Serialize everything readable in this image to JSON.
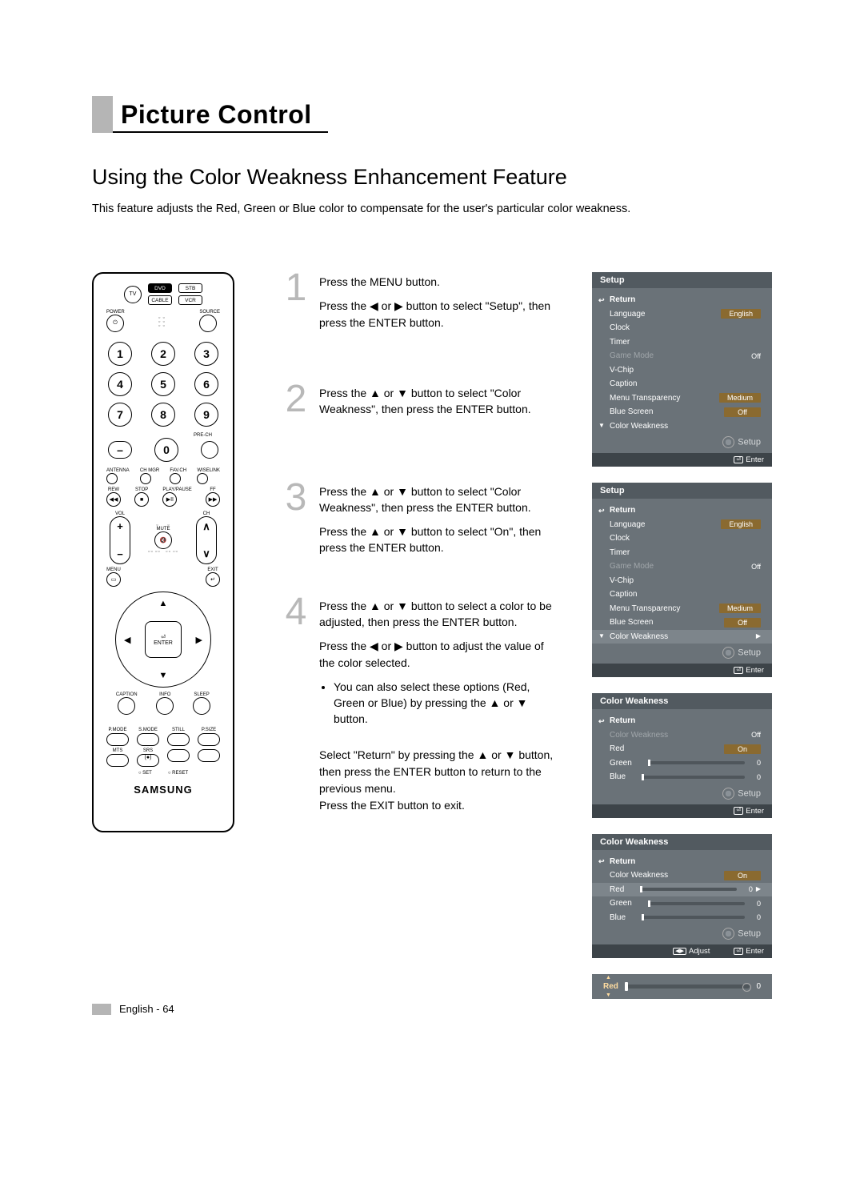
{
  "chapter_title": "Picture Control",
  "section_title": "Using the Color Weakness Enhancement Feature",
  "intro": "This feature adjusts the Red, Green or Blue color to compensate for the user's particular color weakness.",
  "remote": {
    "tv": "TV",
    "sources": [
      "DVD",
      "STB",
      "CABLE",
      "VCR"
    ],
    "power_label": "POWER",
    "source_label": "SOURCE",
    "numbers": [
      "1",
      "2",
      "3",
      "4",
      "5",
      "6",
      "7",
      "8",
      "9",
      "0"
    ],
    "dash": "–",
    "prech": "PRE-CH",
    "row_labels1": [
      "ANTENNA",
      "CH MGR",
      "FAV.CH",
      "WISELINK"
    ],
    "row_labels2": [
      "REW",
      "STOP",
      "PLAY/PAUSE",
      "FF"
    ],
    "vol": "VOL",
    "ch": "CH",
    "mute": "MUTE",
    "menu": "MENU",
    "exit": "EXIT",
    "enter": "ENTER",
    "row_labels3": [
      "CAPTION",
      "INFO",
      "SLEEP"
    ],
    "row_labels4": [
      "P.MODE",
      "S.MODE",
      "STILL",
      "P.SIZE"
    ],
    "row_labels5": [
      "MTS",
      "SRS"
    ],
    "set": "SET",
    "reset": "RESET",
    "logo": "SAMSUNG"
  },
  "steps": [
    {
      "num": "1",
      "lines": [
        "Press the MENU button.",
        "Press the ◀ or ▶ button to select \"Setup\", then press the ENTER button."
      ]
    },
    {
      "num": "2",
      "lines": [
        "Press the ▲ or ▼ button to select \"Color Weakness\", then press the ENTER button."
      ]
    },
    {
      "num": "3",
      "lines": [
        "Press the ▲ or ▼ button to select \"Color Weakness\", then press the ENTER button.",
        "Press the ▲ or ▼ button to select \"On\", then press the ENTER button."
      ]
    },
    {
      "num": "4",
      "lines": [
        "Press the ▲ or ▼ button to select a color to be adjusted, then press the ENTER button.",
        "Press the ◀ or ▶ button to adjust the value of the color selected."
      ],
      "bullet": "You can also select these options (Red, Green or Blue) by pressing the ▲ or ▼ button."
    }
  ],
  "closing": [
    "Select \"Return\" by pressing the ▲ or ▼ button, then press the ENTER button to return to the previous menu.",
    "Press the EXIT button to exit."
  ],
  "osd": {
    "setup_title": "Setup",
    "return": "Return",
    "menu1": [
      {
        "label": "Language",
        "value": "English",
        "hl": true
      },
      {
        "label": "Clock"
      },
      {
        "label": "Timer"
      },
      {
        "label": "Game Mode",
        "value": "Off",
        "dim": true
      },
      {
        "label": "V-Chip"
      },
      {
        "label": "Caption"
      },
      {
        "label": "Menu Transparency",
        "value": "Medium",
        "hl": true
      },
      {
        "label": "Blue Screen",
        "value": "Off",
        "hl": true
      },
      {
        "label": "Color Weakness",
        "tri": "▼"
      }
    ],
    "menu2": [
      {
        "label": "Language",
        "value": "English",
        "hl": true
      },
      {
        "label": "Clock"
      },
      {
        "label": "Timer"
      },
      {
        "label": "Game Mode",
        "value": "Off",
        "dim": true
      },
      {
        "label": "V-Chip"
      },
      {
        "label": "Caption"
      },
      {
        "label": "Menu Transparency",
        "value": "Medium",
        "hl": true
      },
      {
        "label": "Blue Screen",
        "value": "Off",
        "hl": true
      },
      {
        "label": "Color Weakness",
        "sel": true,
        "tri": "▼",
        "chev": "▶"
      }
    ],
    "cw_title": "Color Weakness",
    "menu3": [
      {
        "label": "Color Weakness",
        "value": "Off",
        "dim": true,
        "plain": true
      },
      {
        "label": "Red",
        "value": "On",
        "hl": true
      },
      {
        "label": "Green",
        "slider": true,
        "snum": "0"
      },
      {
        "label": "Blue",
        "slider": true,
        "snum": "0"
      }
    ],
    "menu4": [
      {
        "label": "Color Weakness",
        "value": "On",
        "hl": true
      },
      {
        "label": "Red",
        "sel": true,
        "slider": true,
        "snum": "0",
        "chev": "▶"
      },
      {
        "label": "Green",
        "slider": true,
        "snum": "0"
      },
      {
        "label": "Blue",
        "slider": true,
        "snum": "0"
      }
    ],
    "setup_label": "Setup",
    "enter_label": "Enter",
    "adjust_label": "Adjust",
    "slider_only": {
      "label": "Red",
      "value": "0"
    }
  },
  "footer": "English - 64",
  "colors": {
    "gray": "#b5b5b5",
    "osd_bg": "#6a7278",
    "osd_header": "#525a60",
    "osd_foot": "#3d4449",
    "osd_hl": "#8a6a30",
    "step_num": "#b8b8b8"
  }
}
